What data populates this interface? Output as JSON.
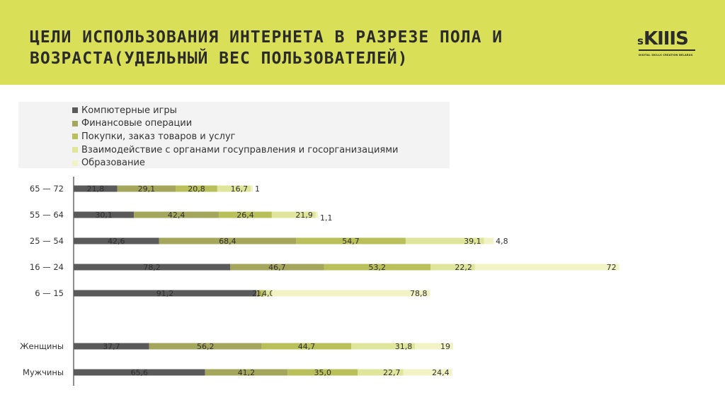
{
  "header": {
    "title_line1": "ЦЕЛИ ИСПОЛЬЗОВАНИЯ ИНТЕРНЕТА В РАЗРЕЗЕ ПОЛА И",
    "title_line2": "ВОЗРАСТА(УДЕЛЬНЫЙ ВЕС ПОЛЬЗОВАТЕЛЕЙ)",
    "logo_prefix": "s",
    "logo_main": "KIIIS",
    "logo_tagline": "DIGITAL SKILLS CREATION BELARUS"
  },
  "colors": {
    "header_bg": "#d9df57",
    "series": [
      "#5a5a5a",
      "#a4a65c",
      "#b9bf59",
      "#dfe59a",
      "#f1f3c4"
    ]
  },
  "chart_data": {
    "type": "bar",
    "orientation": "horizontal",
    "stacked": true,
    "categories": [
      "65 — 72",
      "55 — 64",
      "25 — 54",
      "16 — 24",
      "6 — 15",
      "Женщины",
      "Мужчины"
    ],
    "series": [
      {
        "name": "Компютерные игры",
        "values": [
          21.8,
          30.1,
          42.6,
          78.2,
          91.2,
          37.7,
          65.6
        ],
        "labels": [
          "21,8",
          "30,1",
          "42,6",
          "78,2",
          "91,2",
          "37,7",
          "65,6"
        ]
      },
      {
        "name": "Финансовые операции",
        "values": [
          29.1,
          42.4,
          68.4,
          46.7,
          2.0,
          56.2,
          41.2
        ],
        "labels": [
          "29,1",
          "42,4",
          "68,4",
          "46,7",
          "2,0",
          "56,2",
          "41,2"
        ]
      },
      {
        "name": "Покупки, заказ товаров и услуг",
        "values": [
          20.8,
          26.4,
          54.7,
          53.2,
          1.9,
          44.7,
          35.0
        ],
        "labels": [
          "20,8",
          "26,4",
          "54,7",
          "53,2",
          "1,9",
          "44,7",
          "35,0"
        ]
      },
      {
        "name": "Взаимодействие с органами госуправления и госорганизациями",
        "values": [
          16.7,
          21.9,
          39.1,
          22.2,
          4.0,
          31.8,
          22.7
        ],
        "labels": [
          "16,7",
          "21,9",
          "39,1",
          "22,2",
          "4,0",
          "31,8",
          "22,7"
        ]
      },
      {
        "name": "Образование",
        "values": [
          1,
          1.1,
          4.8,
          72,
          78.8,
          19,
          24.4
        ],
        "labels": [
          "1",
          "1,1",
          "4,8",
          "72",
          "78,8",
          "19",
          "24,4"
        ]
      }
    ],
    "legend_position": "top-left"
  }
}
